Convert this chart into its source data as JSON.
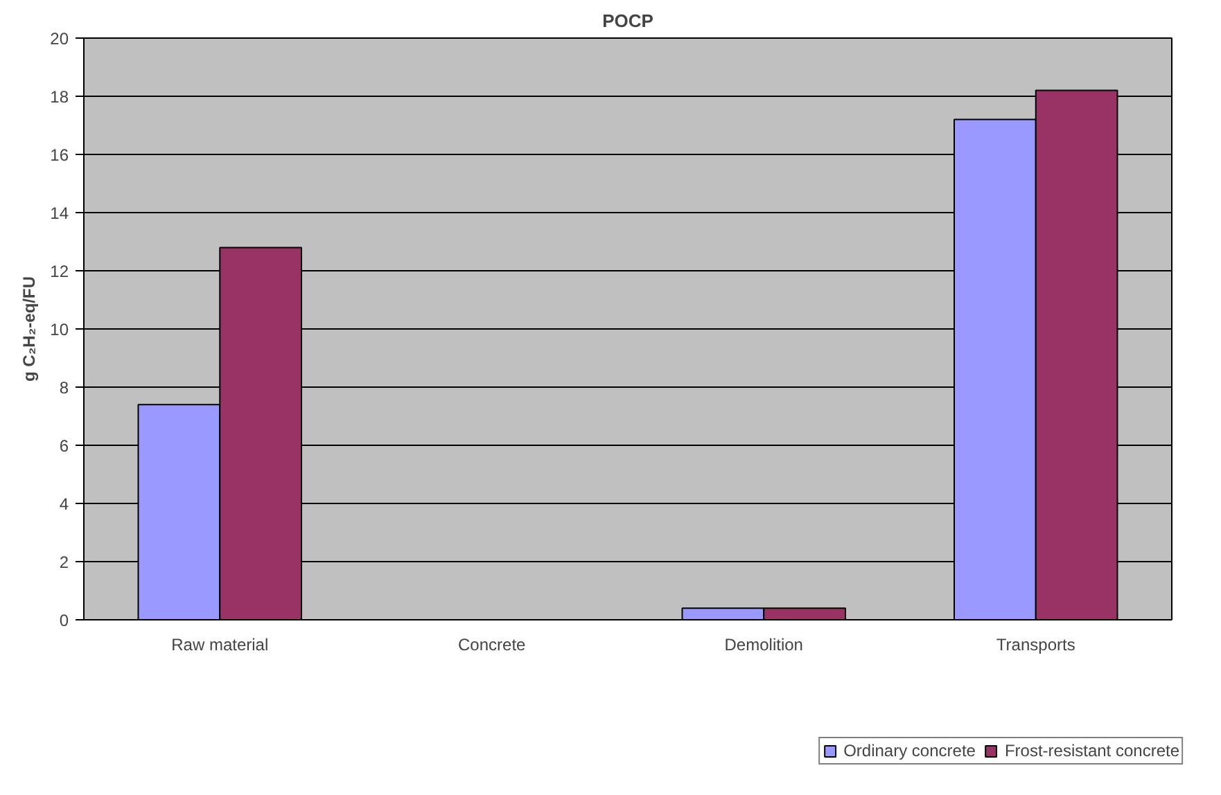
{
  "chart_data": {
    "type": "bar",
    "title": "POCP",
    "ylabel": "g C₂H₂-eq/FU",
    "categories": [
      "Raw material",
      "Concrete",
      "Demolition",
      "Transports"
    ],
    "series": [
      {
        "name": "Ordinary concrete",
        "color": "#9999ff",
        "values": [
          7.4,
          null,
          0.4,
          17.2
        ]
      },
      {
        "name": "Frost-resistant concrete",
        "color": "#993366",
        "values": [
          12.8,
          null,
          0.4,
          18.2
        ]
      }
    ],
    "ylim": [
      0,
      20
    ],
    "yticks": [
      0,
      2,
      4,
      6,
      8,
      10,
      12,
      14,
      16,
      18,
      20
    ],
    "grid": "y",
    "legend": "bottom"
  }
}
